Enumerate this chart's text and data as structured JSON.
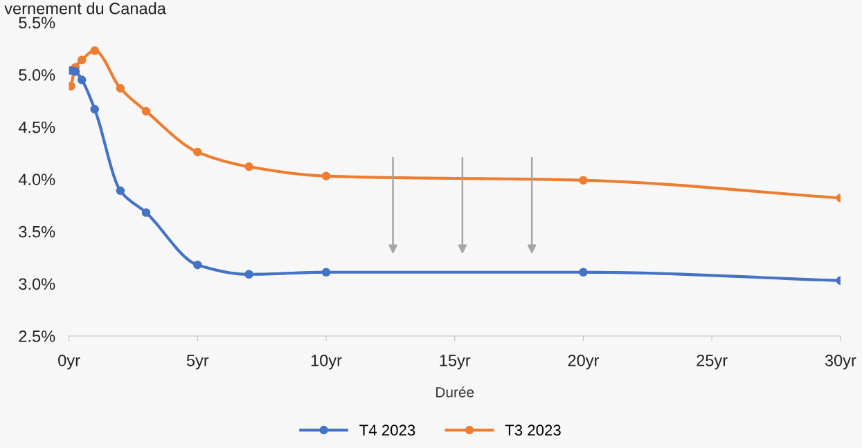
{
  "chart_data": {
    "type": "line",
    "title": "vernement du Canada",
    "xlabel": "Durée",
    "x": [
      0.08,
      0.25,
      0.5,
      1,
      2,
      3,
      5,
      7,
      10,
      20,
      30
    ],
    "series": [
      {
        "name": "T4 2023",
        "color": "#4472c4",
        "values": [
          5.04,
          5.03,
          4.95,
          4.67,
          3.89,
          3.68,
          3.18,
          3.09,
          3.11,
          3.11,
          3.03
        ]
      },
      {
        "name": "T3 2023",
        "color": "#ed7d31",
        "values": [
          4.89,
          5.07,
          5.14,
          5.23,
          4.87,
          4.65,
          4.26,
          4.12,
          4.03,
          3.99,
          3.82
        ]
      }
    ],
    "xlim": [
      0,
      30
    ],
    "xticks": [
      {
        "value": 0,
        "label": "0yr"
      },
      {
        "value": 5,
        "label": "5yr"
      },
      {
        "value": 10,
        "label": "10yr"
      },
      {
        "value": 15,
        "label": "15yr"
      },
      {
        "value": 20,
        "label": "20yr"
      },
      {
        "value": 25,
        "label": "25yr"
      },
      {
        "value": 30,
        "label": "30yr"
      }
    ],
    "ylim": [
      2.5,
      5.5
    ],
    "yticks": [
      {
        "value": 2.5,
        "label": "2.5%"
      },
      {
        "value": 3.0,
        "label": "3.0%"
      },
      {
        "value": 3.5,
        "label": "3.5%"
      },
      {
        "value": 4.0,
        "label": "4.0%"
      },
      {
        "value": 4.5,
        "label": "4.5%"
      },
      {
        "value": 5.0,
        "label": "5.0%"
      },
      {
        "value": 5.5,
        "label": "5.5%"
      }
    ],
    "grid": false,
    "legend": "bottom",
    "marker": "circle",
    "line_style": "solid"
  }
}
